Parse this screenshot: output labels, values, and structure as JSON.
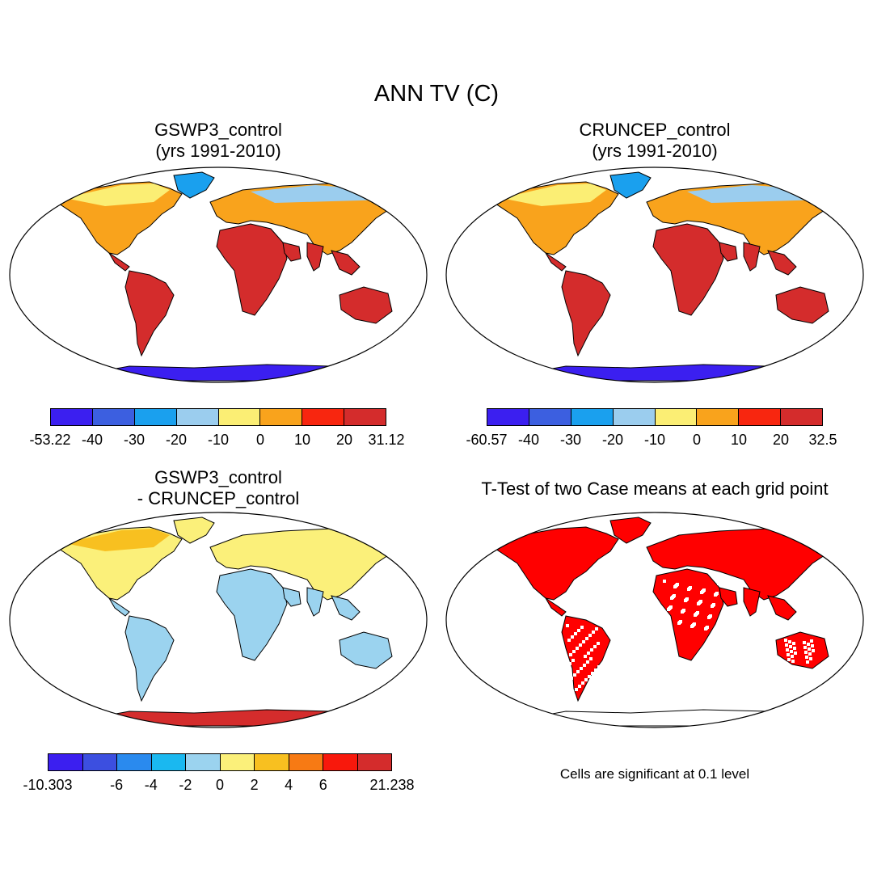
{
  "figure": {
    "title": "ANN TV (C)"
  },
  "panels": {
    "top_left": {
      "title_line1": "GSWP3_control",
      "title_line2": "(yrs 1991-2010)",
      "colorbar": {
        "colors": [
          "#3b1ff0",
          "#3c5fe0",
          "#1aa0ee",
          "#9bcdee",
          "#fbee74",
          "#f9a31c",
          "#f8260f",
          "#d42c2c"
        ],
        "labels": [
          "-53.22",
          "-40",
          "-30",
          "-20",
          "-10",
          "0",
          "10",
          "20",
          "31.12"
        ]
      }
    },
    "top_right": {
      "title_line1": "CRUNCEP_control",
      "title_line2": "(yrs 1991-2010)",
      "colorbar": {
        "colors": [
          "#3b1ff0",
          "#3c5fe0",
          "#1aa0ee",
          "#9bcdee",
          "#fbee74",
          "#f9a31c",
          "#f8260f",
          "#d42c2c"
        ],
        "labels": [
          "-60.57",
          "-40",
          "-30",
          "-20",
          "-10",
          "0",
          "10",
          "20",
          "32.5"
        ]
      }
    },
    "bottom_left": {
      "title_line1": "GSWP3_control",
      "title_line2": "- CRUNCEP_control",
      "colorbar": {
        "colors": [
          "#3b1ff0",
          "#3c4fe0",
          "#2a8aee",
          "#1ab8f0",
          "#9bd3ef",
          "#fbf07a",
          "#f8c020",
          "#f77a14",
          "#f8180c",
          "#d42c2c"
        ],
        "labels": [
          "-10.303",
          "",
          "-6",
          "-4",
          "-2",
          "0",
          "2",
          "4",
          "6",
          "",
          "21.238"
        ]
      }
    },
    "bottom_right": {
      "title_line1": "T-Test of two Case means at each grid point",
      "note": "Cells are significant at 0.1 level"
    }
  },
  "map_colors": {
    "ocean": "#ffffff",
    "land_warm": "#d42c2c",
    "land_mid": "#f8260f",
    "land_orange": "#f9a31c",
    "land_yellow": "#fbee74",
    "land_lightblue": "#9bcdee",
    "land_blue": "#1aa0ee",
    "land_darkblue": "#3c5fe0",
    "antarctic_deep": "#3b1ff0",
    "diff_pale": "#9bd3ef",
    "diff_yellow": "#fbf07a",
    "diff_orange": "#f8c020",
    "significant": "#ff0000"
  }
}
